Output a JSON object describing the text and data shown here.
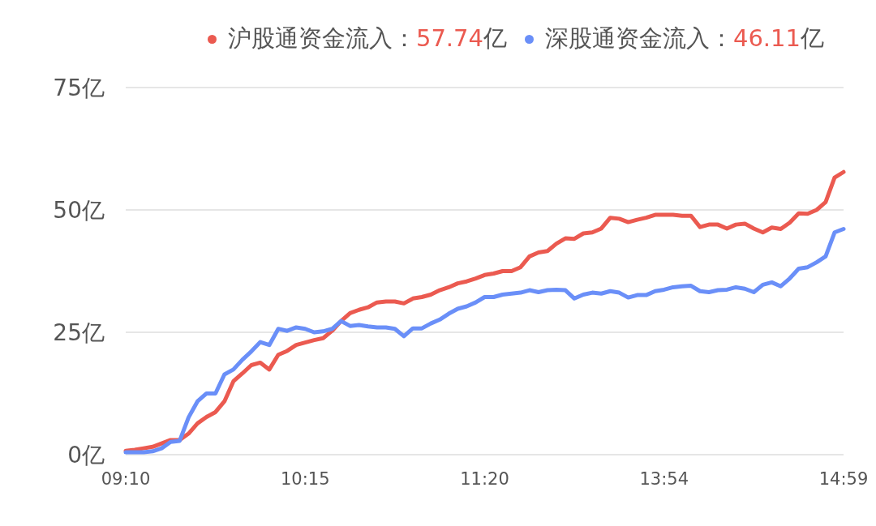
{
  "chart_data": {
    "type": "line",
    "categories": [
      "09:10",
      null,
      null,
      null,
      null,
      null,
      null,
      null,
      null,
      null,
      null,
      null,
      null,
      null,
      null,
      null,
      null,
      null,
      null,
      null,
      "10:15",
      null,
      null,
      null,
      null,
      null,
      null,
      null,
      null,
      null,
      null,
      null,
      null,
      null,
      null,
      null,
      null,
      null,
      null,
      null,
      "11:20",
      null,
      null,
      null,
      null,
      null,
      null,
      null,
      null,
      null,
      null,
      null,
      null,
      null,
      null,
      null,
      null,
      null,
      null,
      null,
      "13:54",
      null,
      null,
      null,
      null,
      null,
      null,
      null,
      null,
      null,
      null,
      null,
      null,
      null,
      null,
      null,
      null,
      null,
      null,
      null,
      "14:59"
    ],
    "series": [
      {
        "name": "沪股通资金流入：57.74亿",
        "color": "#eb5a50",
        "values": [
          0.8,
          1.0,
          1.3,
          1.6,
          2.3,
          3.0,
          3.0,
          4.3,
          6.4,
          7.7,
          8.7,
          10.9,
          15,
          16.6,
          18.3,
          18.8,
          17.4,
          20.4,
          21.2,
          22.4,
          22.9,
          23.4,
          23.8,
          25.3,
          27.3,
          28.9,
          29.6,
          30.1,
          31.1,
          31.3,
          31.3,
          30.9,
          31.9,
          32.2,
          32.7,
          33.6,
          34.2,
          35.0,
          35.4,
          36.0,
          36.7,
          37.0,
          37.5,
          37.5,
          38.3,
          40.5,
          41.3,
          41.6,
          43.1,
          44.2,
          44.1,
          45.2,
          45.4,
          46.2,
          48.4,
          48.2,
          47.5,
          48.0,
          48.4,
          49.0,
          49.0,
          49.0,
          48.8,
          48.8,
          46.5,
          47.0,
          47.0,
          46.2,
          47.0,
          47.2,
          46.2,
          45.4,
          46.4,
          46.1,
          47.4,
          49.3,
          49.2,
          50.0,
          51.6,
          56.6,
          57.74
        ]
      },
      {
        "name": "深股通资金流入：46.11亿",
        "color": "#6a8ff8",
        "values": [
          0.5,
          0.5,
          0.5,
          0.7,
          1.3,
          2.6,
          2.8,
          7.6,
          10.9,
          12.5,
          12.5,
          16.4,
          17.4,
          19.4,
          21.1,
          23.0,
          22.4,
          25.7,
          25.3,
          26.0,
          25.7,
          25.0,
          25.2,
          25.7,
          27.3,
          26.3,
          26.5,
          26.2,
          26.0,
          26.0,
          25.7,
          24.2,
          25.8,
          25.8,
          26.8,
          27.6,
          28.8,
          29.8,
          30.3,
          31.1,
          32.2,
          32.2,
          32.7,
          32.9,
          33.1,
          33.6,
          33.2,
          33.6,
          33.7,
          33.6,
          31.9,
          32.7,
          33.1,
          32.9,
          33.4,
          33.1,
          32.1,
          32.6,
          32.6,
          33.4,
          33.7,
          34.2,
          34.4,
          34.5,
          33.4,
          33.2,
          33.6,
          33.7,
          34.2,
          33.9,
          33.2,
          34.7,
          35.2,
          34.4,
          36.0,
          38.0,
          38.3,
          39.3,
          40.5,
          45.4,
          46.11
        ]
      }
    ],
    "ylim": [
      0,
      75
    ],
    "yticks": [
      {
        "value": 0,
        "label": "0亿"
      },
      {
        "value": 25,
        "label": "25亿"
      },
      {
        "value": 50,
        "label": "50亿"
      },
      {
        "value": 75,
        "label": "75亿"
      }
    ],
    "grid": "y",
    "legend": "top right",
    "marker": "none",
    "line_style": "solid"
  }
}
